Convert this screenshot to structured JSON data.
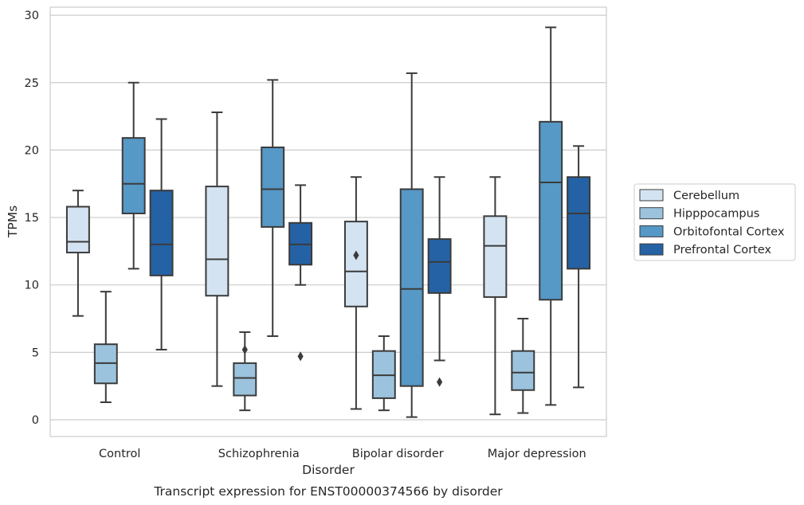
{
  "chart_data": {
    "type": "box",
    "title": "",
    "caption": "Transcript expression for ENST00000374566 by disorder",
    "xlabel": "Disorder",
    "ylabel": "TPMs",
    "ylim": [
      -1.2,
      30.5
    ],
    "yticks": [
      0,
      5,
      10,
      15,
      20,
      25,
      30
    ],
    "grid": "horizontal",
    "legend_position": "right",
    "categories": [
      "Control",
      "Schizophrenia",
      "Bipolar disorder",
      "Major depression"
    ],
    "series": [
      {
        "name": "Cerebellum",
        "color": "#d3e3f2",
        "boxes": [
          {
            "whisker_low": 7.7,
            "q1": 12.4,
            "median": 13.2,
            "q3": 15.8,
            "whisker_high": 17.0,
            "outliers": []
          },
          {
            "whisker_low": 2.5,
            "q1": 9.2,
            "median": 11.9,
            "q3": 17.3,
            "whisker_high": 22.8,
            "outliers": []
          },
          {
            "whisker_low": 0.8,
            "q1": 8.4,
            "median": 11.0,
            "q3": 14.7,
            "whisker_high": 18.0,
            "outliers": [
              12.2
            ]
          },
          {
            "whisker_low": 0.4,
            "q1": 9.1,
            "median": 12.9,
            "q3": 15.1,
            "whisker_high": 18.0,
            "outliers": []
          }
        ]
      },
      {
        "name": "Hipppocampus",
        "color": "#9cc3dd",
        "boxes": [
          {
            "whisker_low": 1.3,
            "q1": 2.7,
            "median": 4.2,
            "q3": 5.6,
            "whisker_high": 9.5,
            "outliers": []
          },
          {
            "whisker_low": 0.7,
            "q1": 1.8,
            "median": 3.1,
            "q3": 4.2,
            "whisker_high": 6.5,
            "outliers": [
              5.2
            ]
          },
          {
            "whisker_low": 0.7,
            "q1": 1.6,
            "median": 3.3,
            "q3": 5.1,
            "whisker_high": 6.2,
            "outliers": []
          },
          {
            "whisker_low": 0.5,
            "q1": 2.2,
            "median": 3.5,
            "q3": 5.1,
            "whisker_high": 7.5,
            "outliers": []
          }
        ]
      },
      {
        "name": "Orbitofontal Cortex",
        "color": "#5698c6",
        "boxes": [
          {
            "whisker_low": 11.2,
            "q1": 15.3,
            "median": 17.5,
            "q3": 20.9,
            "whisker_high": 25.0,
            "outliers": []
          },
          {
            "whisker_low": 6.2,
            "q1": 14.3,
            "median": 17.1,
            "q3": 20.2,
            "whisker_high": 25.2,
            "outliers": []
          },
          {
            "whisker_low": 0.2,
            "q1": 2.5,
            "median": 9.7,
            "q3": 17.1,
            "whisker_high": 25.7,
            "outliers": []
          },
          {
            "whisker_low": 1.1,
            "q1": 8.9,
            "median": 17.6,
            "q3": 22.1,
            "whisker_high": 29.1,
            "outliers": []
          }
        ]
      },
      {
        "name": "Prefrontal Cortex",
        "color": "#2462a5",
        "boxes": [
          {
            "whisker_low": 5.2,
            "q1": 10.7,
            "median": 13.0,
            "q3": 17.0,
            "whisker_high": 22.3,
            "outliers": []
          },
          {
            "whisker_low": 10.0,
            "q1": 11.5,
            "median": 13.0,
            "q3": 14.6,
            "whisker_high": 17.4,
            "outliers": [
              4.7
            ]
          },
          {
            "whisker_low": 4.4,
            "q1": 9.4,
            "median": 11.7,
            "q3": 13.4,
            "whisker_high": 18.0,
            "outliers": [
              2.8
            ]
          },
          {
            "whisker_low": 2.4,
            "q1": 11.2,
            "median": 15.3,
            "q3": 18.0,
            "whisker_high": 20.3,
            "outliers": []
          }
        ]
      }
    ]
  }
}
